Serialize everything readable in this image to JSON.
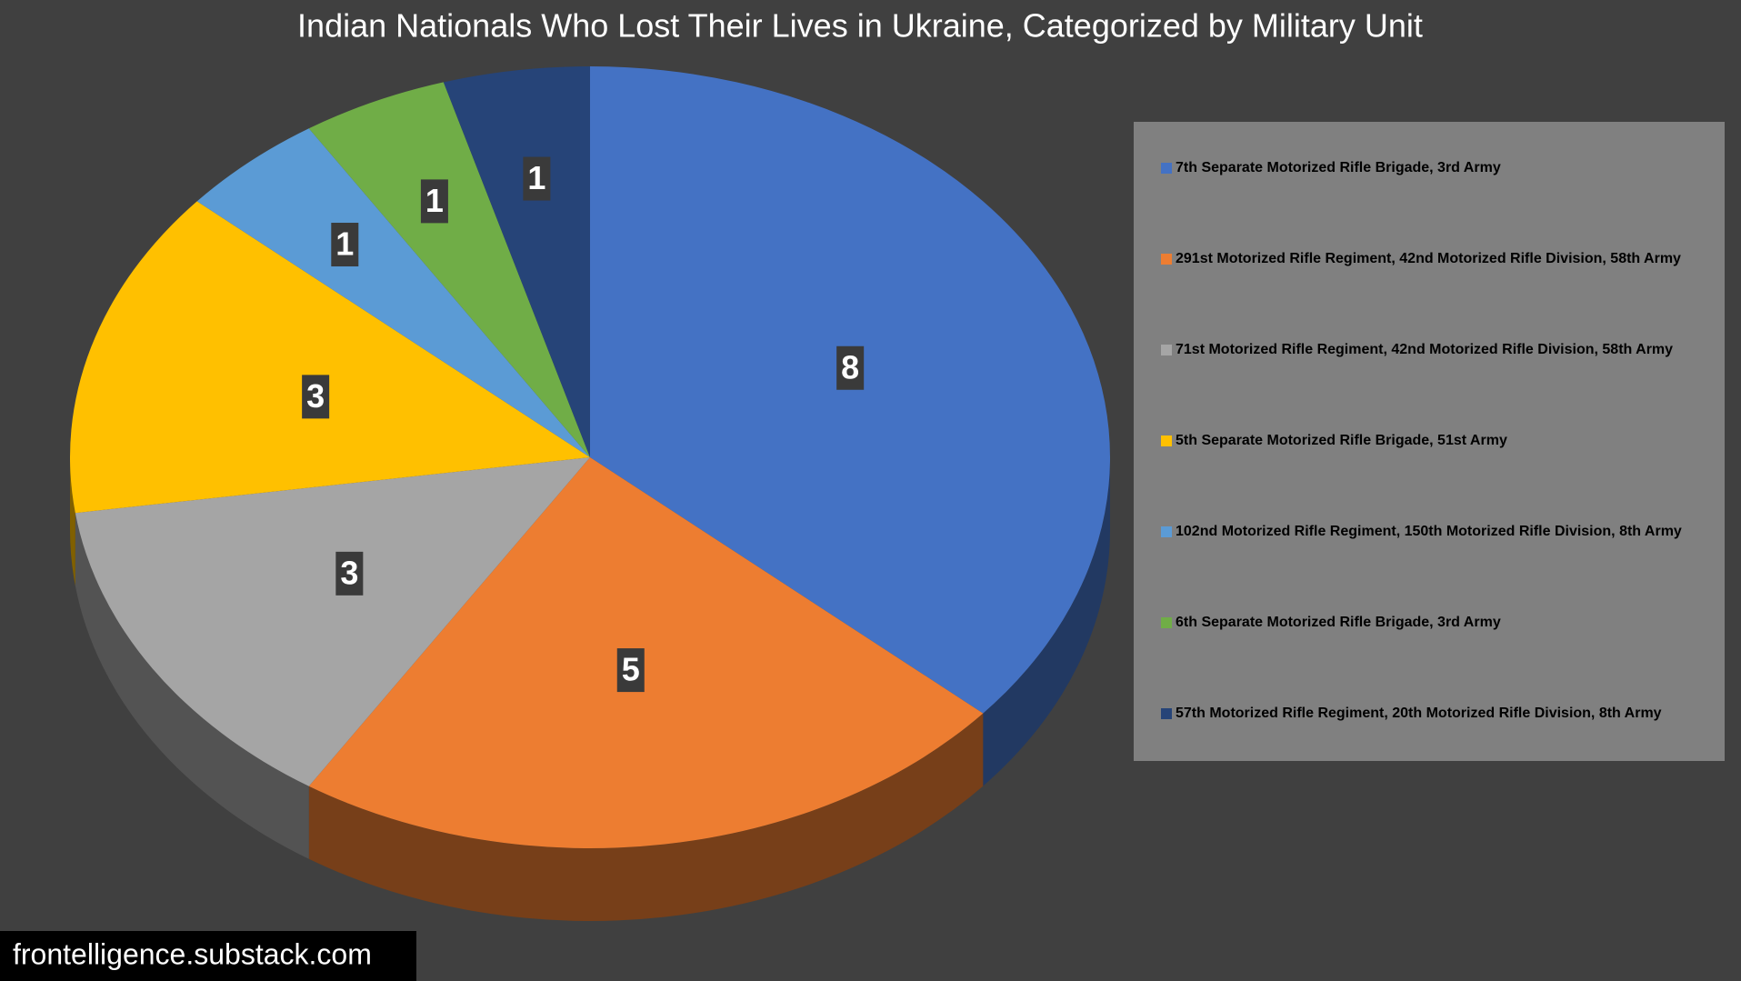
{
  "chart_data": {
    "type": "pie",
    "title": "Indian Nationals Who Lost Their Lives in Ukraine, Categorized by Military Unit",
    "categories": [
      "7th Separate Motorized Rifle Brigade, 3rd Army",
      "291st Motorized Rifle Regiment, 42nd Motorized Rifle Division, 58th Army",
      "71st Motorized Rifle Regiment, 42nd Motorized Rifle Division, 58th Army",
      "5th Separate Motorized Rifle Brigade, 51st Army",
      "102nd Motorized Rifle Regiment, 150th Motorized Rifle Division, 8th Army",
      "6th Separate Motorized Rifle Brigade, 3rd Army",
      "57th Motorized Rifle Regiment, 20th Motorized Rifle Division, 8th Army"
    ],
    "values": [
      8,
      5,
      3,
      3,
      1,
      1,
      1
    ],
    "colors": [
      "#4472c4",
      "#ed7d31",
      "#a5a5a5",
      "#ffc000",
      "#5b9bd5",
      "#70ad47",
      "#264478"
    ],
    "legend": "right"
  },
  "watermark": "frontelligence.substack.com"
}
